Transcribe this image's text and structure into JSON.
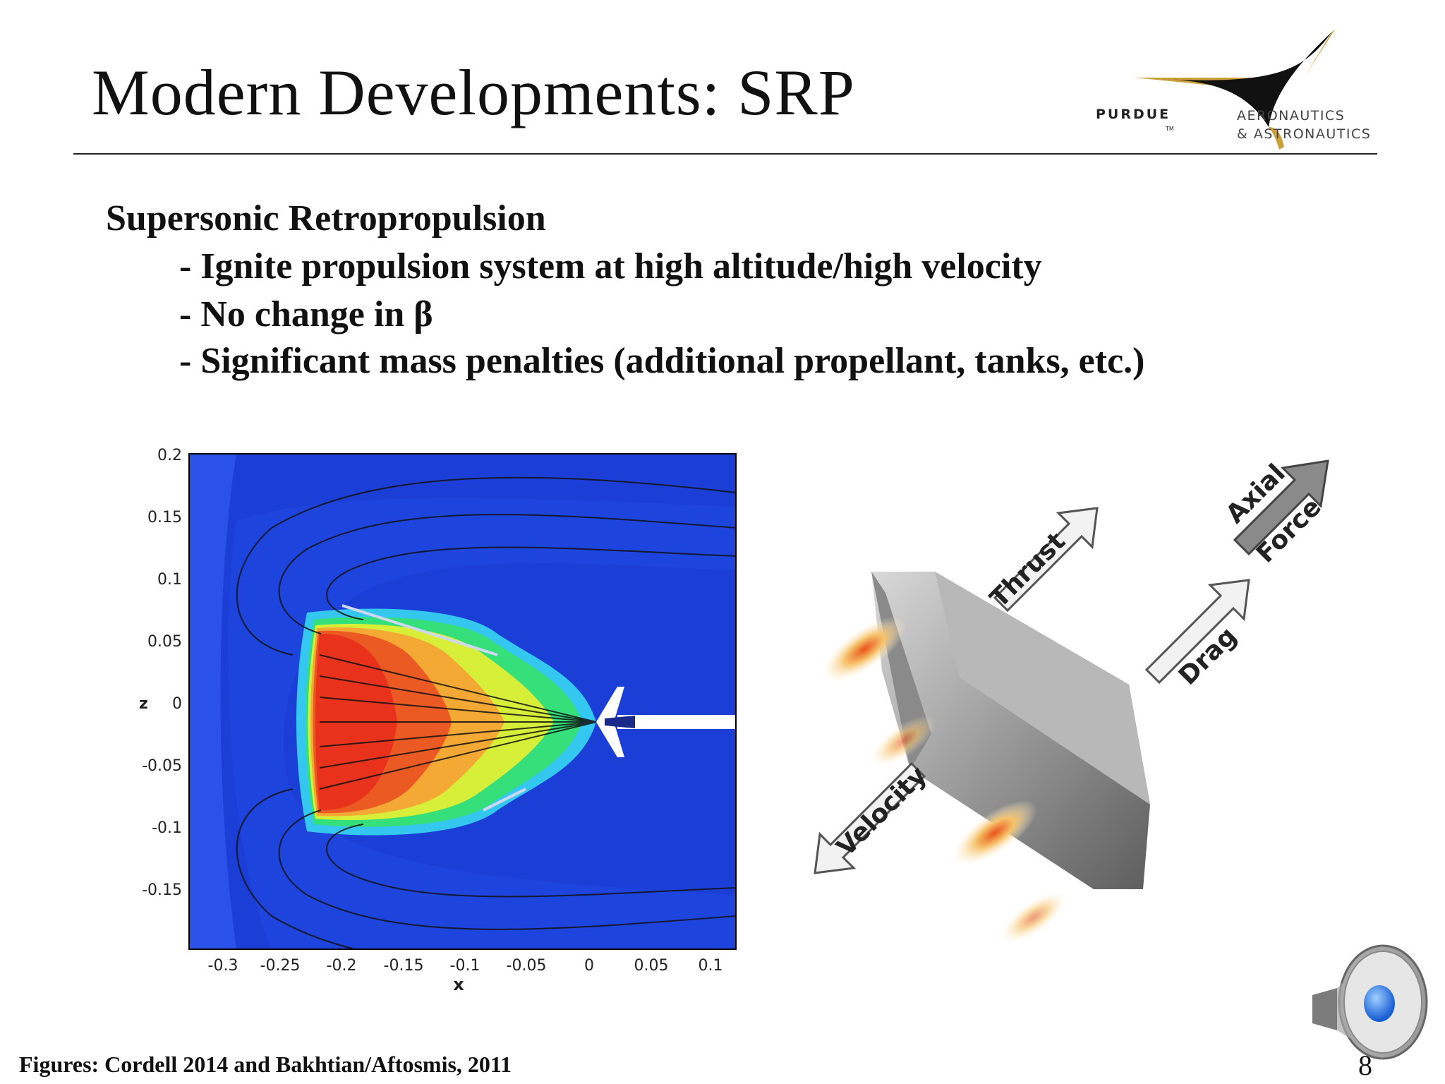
{
  "slide": {
    "title": "Modern Developments: SRP",
    "heading": "Supersonic Retropropulsion",
    "bullets": [
      "- Ignite propulsion system at high altitude/high velocity",
      "- No change in β",
      "- Significant mass penalties (additional propellant, tanks, etc.)"
    ],
    "footer": "Figures: Cordell 2014 and Bakhtian/Aftosmis, 2011",
    "page_number": "8"
  },
  "logo": {
    "name": "PURDUE",
    "tm": "TM",
    "dept_line1": "AERONAUTICS",
    "dept_line2": "& ASTRONAUTICS"
  },
  "cfd_plot": {
    "xlabel": "x",
    "ylabel": "z",
    "xticks": [
      "-0.3",
      "-0.25",
      "-0.2",
      "-0.15",
      "-0.1",
      "-0.05",
      "0",
      "0.05",
      "0.1"
    ],
    "yticks": [
      "0.2",
      "0.15",
      "0.1",
      "0.05",
      "0",
      "-0.05",
      "-0.1",
      "-0.15"
    ]
  },
  "srp_diagram": {
    "thrust": "Thrust",
    "axial": "Axial",
    "force": "Force",
    "drag": "Drag",
    "velocity": "Velocity"
  },
  "colors": {
    "flow_blue": "#1b3fd6",
    "flow_red": "#e8321c",
    "logo_gold": "#c9a13a"
  },
  "icons": [
    "speaker-icon"
  ]
}
